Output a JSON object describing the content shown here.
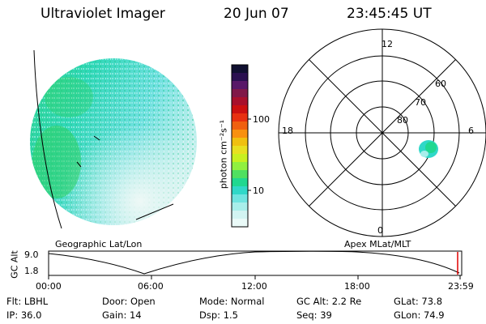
{
  "header": {
    "instrument": "Ultraviolet Imager",
    "date": "20 Jun 07",
    "time": "23:45:45 UT"
  },
  "left_panel": {
    "caption": "Geographic Lat/Lon"
  },
  "colorbar": {
    "unit_label": "photon cm⁻²s⁻¹",
    "tick_labels": [
      "100",
      "10"
    ],
    "colors_top_to_bottom": [
      "#101030",
      "#2a1050",
      "#581868",
      "#801848",
      "#a8102c",
      "#cc1010",
      "#e83010",
      "#f06010",
      "#f89010",
      "#f0c010",
      "#e8e020",
      "#c8f020",
      "#90f040",
      "#50e060",
      "#20d890",
      "#30d8c8",
      "#70e4e0",
      "#a8eeea",
      "#d2f4f2",
      "#eafaf8"
    ]
  },
  "polar_plot": {
    "caption": "Apex MLat/MLT",
    "mlt_labels": {
      "top": "12",
      "bottom": "0",
      "left": "18",
      "right": "6"
    },
    "lat_labels": [
      "60",
      "70",
      "80"
    ]
  },
  "timeline": {
    "axis_label": "GC Alt",
    "y_ticks": [
      "9.0",
      "1.8"
    ],
    "x_ticks": [
      "00:00",
      "06:00",
      "12:00",
      "18:00",
      "23:59"
    ]
  },
  "status": {
    "row1": [
      {
        "key": "Flt:",
        "value": "LBHL"
      },
      {
        "key": "Door:",
        "value": "Open"
      },
      {
        "key": "Mode:",
        "value": "Normal"
      },
      {
        "key": "GC Alt:",
        "value": "2.2 Re"
      },
      {
        "key": "GLat:",
        "value": "73.8"
      }
    ],
    "row2": [
      {
        "key": "IP:",
        "value": "36.0"
      },
      {
        "key": "Gain:",
        "value": "14"
      },
      {
        "key": "Dsp:",
        "value": "1.5"
      },
      {
        "key": "Seq:",
        "value": "39"
      },
      {
        "key": "GLon:",
        "value": "74.9"
      }
    ]
  }
}
